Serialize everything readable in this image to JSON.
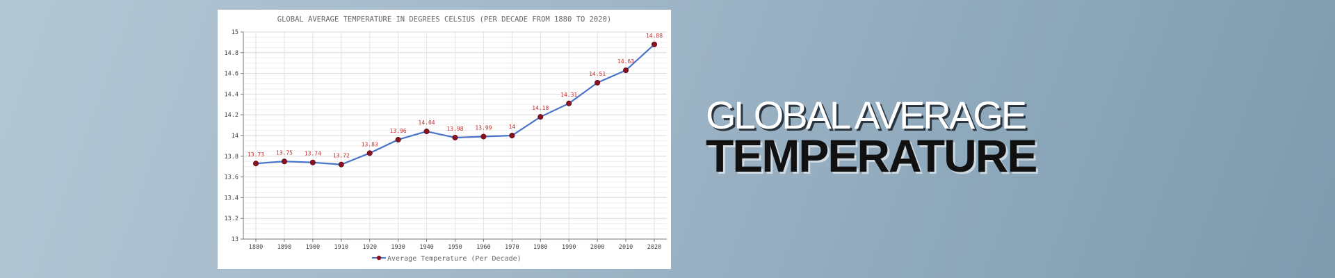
{
  "headline": {
    "line1": "GLOBAL AVERAGE",
    "line2": "TEMPERATURE"
  },
  "colors": {
    "line": "#4a74c9",
    "marker": "#8b1020",
    "data_label": "#c62828",
    "grid": "#dddddd"
  },
  "chart_data": {
    "type": "line",
    "title": "GLOBAL AVERAGE TEMPERATURE IN DEGREES CELSIUS (PER DECADE FROM 1880 TO 2020)",
    "categories": [
      "1880",
      "1890",
      "1900",
      "1910",
      "1920",
      "1930",
      "1940",
      "1950",
      "1960",
      "1970",
      "1980",
      "1990",
      "2000",
      "2010",
      "2020"
    ],
    "series": [
      {
        "name": "Average Temperature (Per Decade)",
        "values": [
          13.73,
          13.75,
          13.74,
          13.72,
          13.83,
          13.96,
          14.04,
          13.98,
          13.99,
          14,
          14.18,
          14.31,
          14.51,
          14.63,
          14.88
        ]
      }
    ],
    "data_labels": [
      "13.73",
      "13.75",
      "13.74",
      "13.72",
      "13.83",
      "13.96",
      "14.04",
      "13.98",
      "13.99",
      "14",
      "14.18",
      "14.31",
      "14.51",
      "14.63",
      "14.88"
    ],
    "y_ticks": [
      "13",
      "13.2",
      "13.4",
      "13.6",
      "13.8",
      "14",
      "14.2",
      "14.4",
      "14.6",
      "14.8",
      "15"
    ],
    "ylim": [
      13,
      15
    ],
    "grid": true,
    "legend": "bottom-center"
  }
}
